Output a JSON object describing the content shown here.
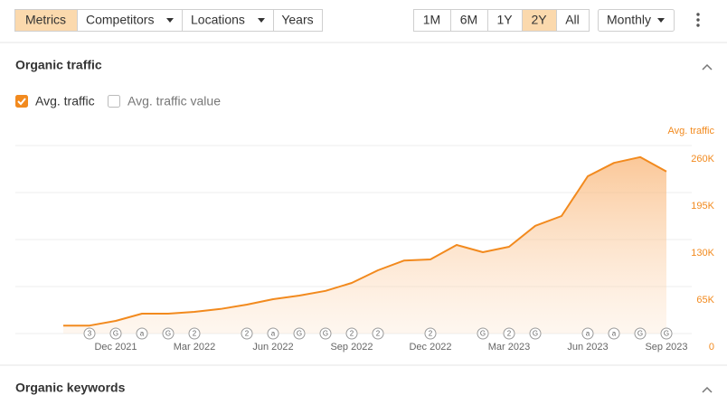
{
  "toolbar": {
    "left": [
      {
        "label": "Metrics",
        "active": true
      },
      {
        "label": "Competitors",
        "active": false,
        "dropdown": true
      },
      {
        "label": "Locations",
        "active": false,
        "dropdown": true
      },
      {
        "label": "Years",
        "active": false
      }
    ],
    "range": [
      {
        "label": "1M",
        "active": false
      },
      {
        "label": "6M",
        "active": false
      },
      {
        "label": "1Y",
        "active": false
      },
      {
        "label": "2Y",
        "active": true
      },
      {
        "label": "All",
        "active": false
      }
    ],
    "interval": "Monthly"
  },
  "section": {
    "title": "Organic traffic",
    "checkboxes": [
      {
        "label": "Avg. traffic",
        "checked": true
      },
      {
        "label": "Avg. traffic value",
        "checked": false
      }
    ]
  },
  "chart_data": {
    "type": "line",
    "area": true,
    "color": "#f28a1e",
    "y_axis_label": "Avg. traffic",
    "y_axis_side": "right",
    "grid": true,
    "categories": [
      null,
      null,
      "Dec 2021",
      null,
      null,
      "Mar 2022",
      null,
      null,
      "Jun 2022",
      null,
      null,
      "Sep 2022",
      null,
      null,
      "Dec 2022",
      null,
      null,
      "Mar 2023",
      null,
      null,
      "Jun 2023",
      null,
      null,
      "Sep 2023"
    ],
    "values": [
      11000,
      11000,
      17500,
      27500,
      27500,
      30000,
      34000,
      40000,
      47500,
      52500,
      59000,
      70000,
      87500,
      101000,
      102500,
      122500,
      112500,
      120000,
      149000,
      162500,
      217500,
      236000,
      244000,
      224000
    ],
    "markers": [
      null,
      "3",
      "G",
      "a",
      "G",
      "2",
      null,
      "2",
      "a",
      "G",
      "G",
      "2",
      "2",
      null,
      "2",
      null,
      "G",
      "2",
      "G",
      null,
      "a",
      "a",
      "G",
      "G"
    ],
    "ylim": [
      0,
      260000
    ],
    "yticks": [
      0,
      {
        "value": 65000,
        "label": "65K"
      },
      {
        "value": 130000,
        "label": "130K"
      },
      {
        "value": 195000,
        "label": "195K"
      },
      {
        "value": 260000,
        "label": "260K"
      }
    ]
  },
  "next_section": {
    "title": "Organic keywords"
  }
}
